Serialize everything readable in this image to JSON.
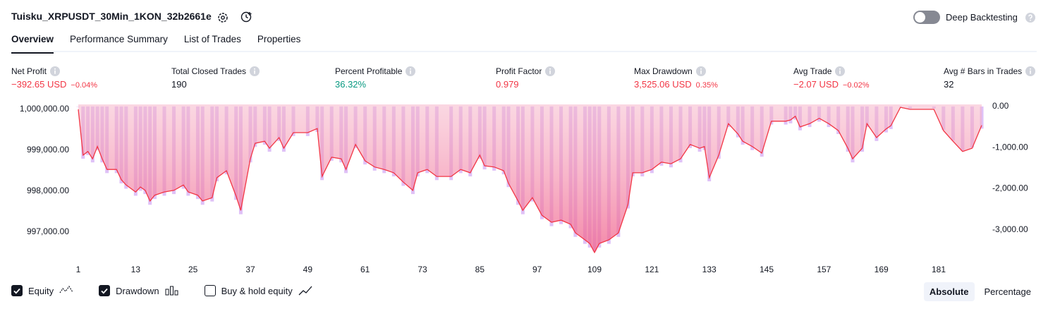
{
  "header": {
    "title": "Tuisku_XRPUSDT_30Min_1KON_32b2661e",
    "deep_backtesting": "Deep Backtesting"
  },
  "tabs": [
    "Overview",
    "Performance Summary",
    "List of Trades",
    "Properties"
  ],
  "active_tab": 0,
  "metrics": [
    {
      "label": "Net Profit",
      "value": "−392.65 USD",
      "extra": "−0.04%",
      "color": "#f23645"
    },
    {
      "label": "Total Closed Trades",
      "value": "190",
      "color": "#131722"
    },
    {
      "label": "Percent Profitable",
      "value": "36.32%",
      "color": "#089981"
    },
    {
      "label": "Profit Factor",
      "value": "0.979",
      "color": "#f23645"
    },
    {
      "label": "Max Drawdown",
      "value": "3,525.06 USD",
      "extra": "0.35%",
      "color": "#f23645"
    },
    {
      "label": "Avg Trade",
      "value": "−2.07 USD",
      "extra": "−0.02%",
      "color": "#f23645"
    },
    {
      "label": "Avg # Bars in Trades",
      "value": "32",
      "color": "#131722"
    }
  ],
  "chart_data": {
    "type": "combo",
    "x": [
      1,
      2,
      3,
      4,
      5,
      6,
      7,
      9,
      10,
      11,
      13,
      14,
      15,
      16,
      17,
      19,
      21,
      23,
      24,
      26,
      27,
      29,
      30,
      32,
      34,
      35,
      37,
      38,
      40,
      41,
      43,
      44,
      46,
      49,
      51,
      52,
      54,
      56,
      57,
      59,
      61,
      63,
      65,
      67,
      69,
      71,
      72,
      74,
      76,
      79,
      81,
      83,
      85,
      86,
      88,
      90,
      91,
      93,
      94,
      96,
      98,
      100,
      102,
      104,
      105,
      107,
      108,
      109,
      110,
      112,
      114,
      116,
      117,
      119,
      121,
      123,
      125,
      127,
      129,
      131,
      132,
      133,
      135,
      137,
      139,
      140,
      142,
      144,
      146,
      149,
      150,
      151,
      152,
      154,
      156,
      158,
      160,
      162,
      163,
      165,
      166,
      168,
      170,
      171,
      173,
      175,
      180,
      182,
      184,
      186,
      188,
      190
    ],
    "series": [
      {
        "name": "Equity",
        "type": "line",
        "color": "#f23645",
        "checked": true,
        "values": [
          1000000,
          998880,
          998970,
          998790,
          999090,
          998790,
          998530,
          998530,
          998280,
          998150,
          997980,
          998100,
          998020,
          997760,
          997900,
          997980,
          998020,
          998150,
          997980,
          997900,
          997760,
          997840,
          998330,
          998500,
          997880,
          997530,
          998790,
          999170,
          999220,
          999050,
          999310,
          999050,
          999430,
          999430,
          999530,
          998360,
          998830,
          998790,
          998530,
          999140,
          998740,
          998590,
          998530,
          998450,
          998220,
          998020,
          998450,
          998530,
          998360,
          998360,
          998530,
          998450,
          998880,
          998620,
          998590,
          998500,
          998190,
          997760,
          997530,
          997840,
          997410,
          997240,
          997290,
          997190,
          996980,
          996810,
          996720,
          996500,
          996720,
          996810,
          996980,
          997670,
          998450,
          998450,
          998530,
          998710,
          998670,
          998790,
          999140,
          999050,
          999090,
          998330,
          998880,
          999650,
          999400,
          999220,
          999090,
          998930,
          999710,
          999710,
          999740,
          999830,
          999570,
          999650,
          999780,
          999650,
          999480,
          999050,
          998790,
          999050,
          999650,
          999310,
          999520,
          999600,
          1000050,
          1000000,
          1000000,
          999480,
          999220,
          998970,
          999050,
          999610
        ]
      },
      {
        "name": "Drawdown",
        "type": "bar",
        "axis": "y2",
        "color": "#d9b6f6",
        "checked": true,
        "values": [
          0,
          -1270,
          -1180,
          -1360,
          -1060,
          -1360,
          -1620,
          -1620,
          -1870,
          -2000,
          -2170,
          -2050,
          -2130,
          -2390,
          -2250,
          -2170,
          -2130,
          -2000,
          -2170,
          -2250,
          -2390,
          -2310,
          -1820,
          -1650,
          -2270,
          -2620,
          -1360,
          -980,
          -930,
          -1100,
          -840,
          -1100,
          -720,
          -720,
          -620,
          -1790,
          -1320,
          -1360,
          -1620,
          -1010,
          -1410,
          -1560,
          -1620,
          -1700,
          -1930,
          -2130,
          -1700,
          -1620,
          -1790,
          -1790,
          -1620,
          -1700,
          -1270,
          -1530,
          -1560,
          -1650,
          -1960,
          -2390,
          -2620,
          -2310,
          -2740,
          -2910,
          -2860,
          -2960,
          -3170,
          -3340,
          -3430,
          -3525,
          -3430,
          -3340,
          -3170,
          -2480,
          -1700,
          -1700,
          -1620,
          -1440,
          -1480,
          -1360,
          -1010,
          -1100,
          -1060,
          -1820,
          -1270,
          -500,
          -750,
          -930,
          -1060,
          -1220,
          -440,
          -440,
          -410,
          -320,
          -580,
          -500,
          -370,
          -500,
          -670,
          -1100,
          -1360,
          -1100,
          -500,
          -840,
          -630,
          -550,
          0,
          -50,
          -50,
          -570,
          -830,
          -1080,
          -1000,
          -540
        ]
      }
    ],
    "extra_legend": {
      "name": "Buy & hold equity",
      "checked": false
    },
    "xlim": [
      1,
      190
    ],
    "xticks": [
      1,
      13,
      25,
      37,
      49,
      61,
      73,
      85,
      97,
      109,
      121,
      133,
      145,
      157,
      169,
      181
    ],
    "ylim": [
      996430,
      1000120
    ],
    "yticks": [
      {
        "value": 1000000,
        "label": "1,000,000.00"
      },
      {
        "value": 999000,
        "label": "999,000.00"
      },
      {
        "value": 998000,
        "label": "998,000.00"
      },
      {
        "value": 997000,
        "label": "997,000.00"
      }
    ],
    "y2lim": [
      -3620,
      50
    ],
    "y2ticks": [
      {
        "value": 0,
        "label": "0.00"
      },
      {
        "value": -1000,
        "label": "-1,000.00"
      },
      {
        "value": -2000,
        "label": "-2,000.00"
      },
      {
        "value": -3000,
        "label": "-3,000.00"
      }
    ],
    "grid": false
  },
  "view_toggle": {
    "options": [
      "Absolute",
      "Percentage"
    ],
    "active": 0
  }
}
